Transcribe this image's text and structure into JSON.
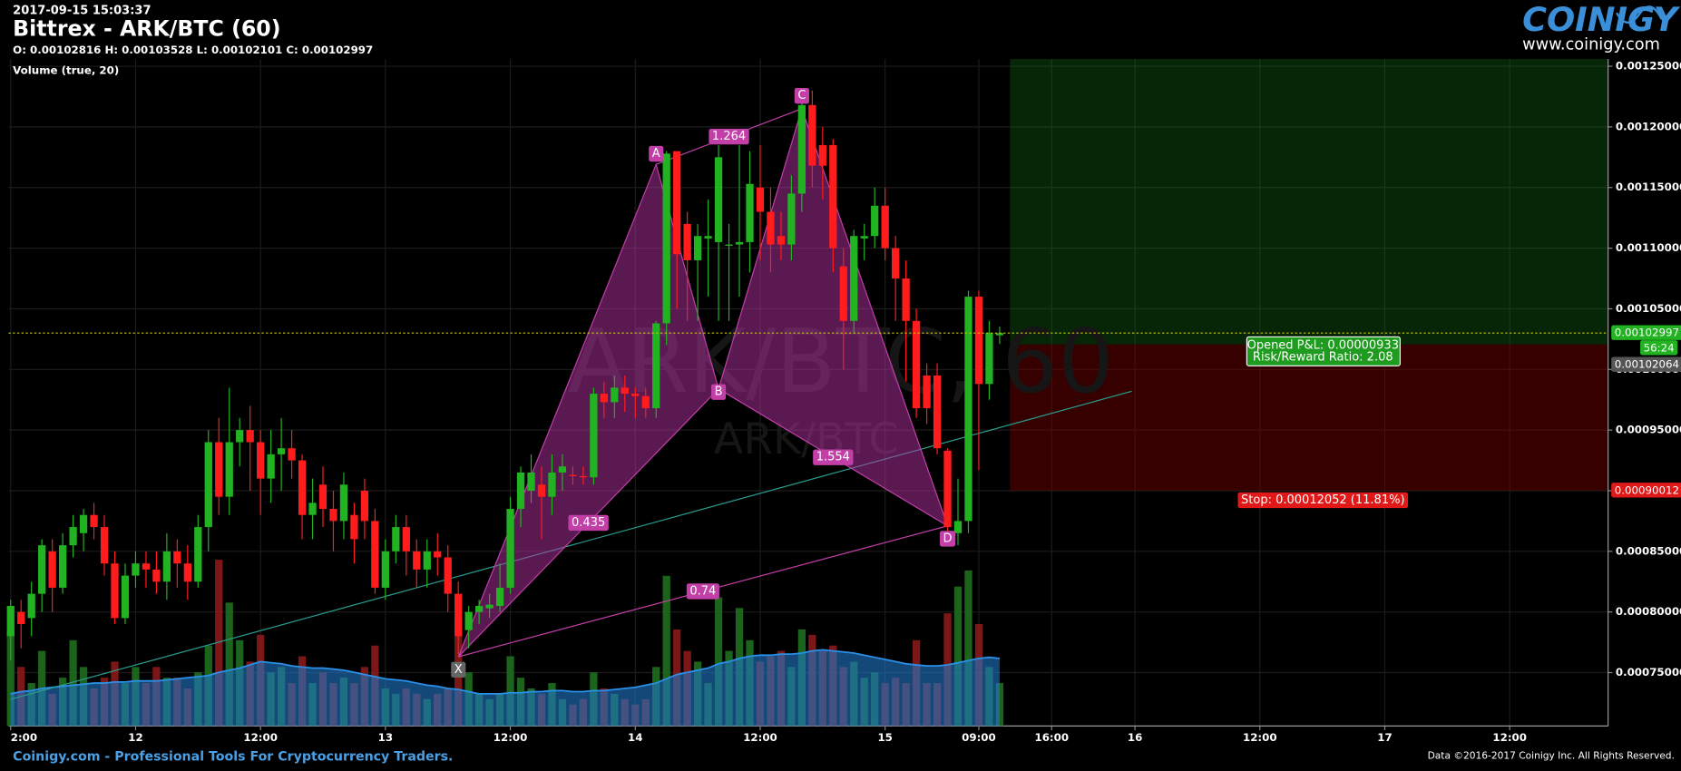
{
  "header": {
    "timestamp": "2017-09-15 15:03:37",
    "title": "Bittrex - ARK/BTC (60)",
    "ohlc": "O: 0.00102816 H: 0.00103528 L: 0.00102101 C: 0.00102997"
  },
  "logo": {
    "name": "COINIGY",
    "url": "www.coinigy.com"
  },
  "watermark": {
    "main": "ARK/BTC, 60",
    "sub": "ARK/BTC"
  },
  "footer": {
    "left": "Coinigy.com - Professional Tools For Cryptocurrency Traders.",
    "right": "Data ©2016-2017 Coinigy Inc. All Rights Reserved."
  },
  "chart_data": {
    "type": "candlestick",
    "up_color": "#22b322",
    "down_color": "#ff1c1c",
    "grid": true,
    "x": [
      0,
      1,
      2,
      3,
      4,
      5,
      6,
      7,
      8,
      9,
      10,
      11,
      12,
      13,
      14,
      15,
      16,
      17,
      18,
      19,
      20,
      21,
      22,
      23,
      24,
      25,
      26,
      27,
      28,
      29,
      30,
      31,
      32,
      33,
      34,
      35,
      36,
      37,
      38,
      39,
      40,
      41,
      42,
      43,
      44,
      45,
      46,
      47,
      48,
      49,
      50,
      51,
      52,
      53,
      54,
      55,
      56,
      57,
      58,
      59,
      60,
      61,
      62,
      63,
      64,
      65,
      66,
      67,
      68,
      69,
      70,
      71,
      72,
      73,
      74,
      75,
      76,
      77,
      78,
      79,
      80,
      81,
      82,
      83,
      84,
      85,
      86,
      87,
      88,
      89,
      90,
      91,
      92,
      93,
      94,
      95
    ],
    "open": [
      0.00078,
      0.0008,
      0.000795,
      0.000815,
      0.00085,
      0.00082,
      0.000855,
      0.000865,
      0.00088,
      0.00087,
      0.00084,
      0.000795,
      0.00083,
      0.00084,
      0.000835,
      0.000825,
      0.00085,
      0.00084,
      0.000825,
      0.00087,
      0.00094,
      0.000895,
      0.00094,
      0.00095,
      0.00094,
      0.00091,
      0.00093,
      0.000935,
      0.000925,
      0.00088,
      0.000905,
      0.000885,
      0.000875,
      0.00088,
      0.0009,
      0.000875,
      0.00082,
      0.00085,
      0.00087,
      0.00085,
      0.000835,
      0.00085,
      0.000845,
      0.000815,
      0.000785,
      0.0008,
      0.000803,
      0.000805,
      0.00082,
      0.000885,
      0.0009,
      0.000905,
      0.000895,
      0.000915,
      0.000913,
      0.000912,
      0.000911,
      0.00098,
      0.000973,
      0.000985,
      0.00098,
      0.000978,
      0.000968,
      0.001038,
      0.00118,
      0.00112,
      0.00109,
      0.001108,
      0.001105,
      0.001102,
      0.001103,
      0.001105,
      0.00115,
      0.00113,
      0.00111,
      0.001103,
      0.001145,
      0.001218,
      0.001185,
      0.001185,
      0.001085,
      0.00104,
      0.001108,
      0.00111,
      0.001135,
      0.0011,
      0.001075,
      0.00104,
      0.000995,
      0.000995,
      0.000933,
      0.000865,
      0.000875,
      0.00106,
      0.000988,
      0.00102816
    ],
    "high": [
      0.00081,
      0.00081,
      0.000825,
      0.00086,
      0.00086,
      0.000865,
      0.00088,
      0.000885,
      0.00089,
      0.00088,
      0.00085,
      0.00084,
      0.00085,
      0.00085,
      0.00085,
      0.000865,
      0.00086,
      0.000855,
      0.00088,
      0.00095,
      0.00096,
      0.000985,
      0.00096,
      0.00097,
      0.00095,
      0.00095,
      0.00096,
      0.00095,
      0.00093,
      0.00091,
      0.00092,
      0.0009,
      0.000915,
      0.00089,
      0.00091,
      0.000885,
      0.00086,
      0.00088,
      0.00088,
      0.00086,
      0.00086,
      0.000865,
      0.000855,
      0.000825,
      0.000805,
      0.00081,
      0.000815,
      0.00084,
      0.000895,
      0.00092,
      0.00093,
      0.00092,
      0.00093,
      0.00093,
      0.00092,
      0.00092,
      0.000985,
      0.00099,
      0.000995,
      0.000995,
      0.000985,
      0.000985,
      0.00104,
      0.00118,
      0.00118,
      0.00113,
      0.00112,
      0.00114,
      0.001185,
      0.00112,
      0.001185,
      0.00118,
      0.001185,
      0.00115,
      0.00113,
      0.00116,
      0.00122,
      0.00123,
      0.0012,
      0.00119,
      0.0011,
      0.001115,
      0.00112,
      0.00115,
      0.00115,
      0.00111,
      0.00109,
      0.00105,
      0.001005,
      0.001005,
      0.000935,
      0.00091,
      0.001065,
      0.001065,
      0.00104,
      0.00103528
    ],
    "low": [
      0.00076,
      0.00077,
      0.00078,
      0.0008,
      0.0008,
      0.000815,
      0.000845,
      0.00085,
      0.00086,
      0.00083,
      0.00079,
      0.00079,
      0.00082,
      0.00082,
      0.000815,
      0.00081,
      0.00082,
      0.00081,
      0.00082,
      0.00085,
      0.00088,
      0.00088,
      0.00092,
      0.0009,
      0.00088,
      0.00089,
      0.0009,
      0.00091,
      0.00086,
      0.00086,
      0.00087,
      0.00085,
      0.00086,
      0.00084,
      0.00086,
      0.000815,
      0.00081,
      0.00084,
      0.00083,
      0.00082,
      0.00082,
      0.00083,
      0.0008,
      0.000765,
      0.00077,
      0.00079,
      0.000795,
      0.0008,
      0.000815,
      0.00087,
      0.00089,
      0.00086,
      0.00088,
      0.0009,
      0.000905,
      0.000905,
      0.000905,
      0.00096,
      0.00096,
      0.000965,
      0.00096,
      0.00096,
      0.00096,
      0.00102,
      0.00105,
      0.00104,
      0.00104,
      0.00106,
      0.00104,
      0.00104,
      0.00106,
      0.00108,
      0.00109,
      0.00108,
      0.00109,
      0.00109,
      0.00113,
      0.00115,
      0.00114,
      0.00108,
      0.001,
      0.00103,
      0.00109,
      0.0011,
      0.00109,
      0.00104,
      0.00099,
      0.00096,
      0.000955,
      0.00093,
      0.00086,
      0.000855,
      0.000865,
      0.000917,
      0.000975,
      0.00102101
    ],
    "close": [
      0.000805,
      0.00079,
      0.000815,
      0.000855,
      0.00082,
      0.000855,
      0.00087,
      0.00088,
      0.00087,
      0.00084,
      0.000795,
      0.00083,
      0.00084,
      0.000835,
      0.000825,
      0.00085,
      0.00084,
      0.000825,
      0.00087,
      0.00094,
      0.000895,
      0.00094,
      0.00095,
      0.00094,
      0.00091,
      0.00093,
      0.000935,
      0.000925,
      0.00088,
      0.00089,
      0.000885,
      0.000875,
      0.000905,
      0.00086,
      0.000875,
      0.00082,
      0.00085,
      0.00087,
      0.00085,
      0.000835,
      0.00085,
      0.000845,
      0.000815,
      0.00078,
      0.0008,
      0.000805,
      0.000806,
      0.00082,
      0.000885,
      0.000915,
      0.000915,
      0.000895,
      0.000915,
      0.00092,
      0.000912,
      0.000911,
      0.00098,
      0.000973,
      0.000985,
      0.00098,
      0.000978,
      0.000968,
      0.001038,
      0.001178,
      0.001095,
      0.00109,
      0.00111,
      0.00111,
      0.001175,
      0.001103,
      0.001105,
      0.001153,
      0.00113,
      0.001103,
      0.001103,
      0.001145,
      0.001218,
      0.001168,
      0.001168,
      0.0011,
      0.00104,
      0.00111,
      0.00111,
      0.001135,
      0.0011,
      0.001075,
      0.00104,
      0.000968,
      0.000968,
      0.000935,
      0.00087,
      0.000875,
      0.00106,
      0.000988,
      0.00103,
      0.00102997
    ],
    "volume": {
      "label": "Volume (true, 20)",
      "up_color": "#1f6e1f",
      "down_color": "#8a1a1a",
      "ma_color": "#1f78c8",
      "values": [
        90,
        55,
        40,
        70,
        30,
        45,
        80,
        55,
        35,
        45,
        60,
        40,
        55,
        40,
        55,
        45,
        45,
        35,
        50,
        75,
        155,
        115,
        80,
        60,
        85,
        50,
        55,
        40,
        65,
        40,
        50,
        40,
        45,
        40,
        55,
        75,
        35,
        30,
        35,
        30,
        25,
        30,
        35,
        100,
        50,
        30,
        25,
        30,
        65,
        45,
        35,
        30,
        40,
        25,
        20,
        25,
        50,
        35,
        30,
        25,
        20,
        25,
        55,
        140,
        90,
        70,
        60,
        40,
        120,
        70,
        110,
        80,
        60,
        65,
        70,
        55,
        90,
        85,
        70,
        75,
        55,
        60,
        45,
        50,
        40,
        45,
        40,
        80,
        40,
        40,
        105,
        130,
        145,
        95,
        55,
        40
      ],
      "ma": [
        30,
        32,
        33,
        35,
        36,
        37,
        38,
        39,
        40,
        40,
        41,
        41,
        42,
        42,
        42,
        43,
        44,
        45,
        46,
        47,
        50,
        52,
        54,
        57,
        60,
        59,
        58,
        56,
        55,
        54,
        54,
        53,
        52,
        50,
        48,
        46,
        44,
        43,
        42,
        40,
        38,
        37,
        35,
        34,
        32,
        30,
        30,
        30,
        31,
        31,
        32,
        32,
        33,
        33,
        32,
        32,
        33,
        33,
        34,
        35,
        36,
        38,
        40,
        44,
        48,
        50,
        52,
        54,
        58,
        60,
        63,
        65,
        66,
        66,
        67,
        67,
        68,
        70,
        71,
        70,
        69,
        68,
        66,
        64,
        62,
        60,
        58,
        57,
        56,
        56,
        57,
        59,
        61,
        63,
        64,
        63
      ]
    },
    "xlim": [
      -0.2,
      153.45
    ],
    "ylim": [
      0.000706,
      0.001256
    ],
    "xticks": [
      {
        "value": 0,
        "label": "2:00"
      },
      {
        "value": 12,
        "label": "12"
      },
      {
        "value": 24,
        "label": "12:00"
      },
      {
        "value": 36,
        "label": "13"
      },
      {
        "value": 48,
        "label": "12:00"
      },
      {
        "value": 60,
        "label": "14"
      },
      {
        "value": 72,
        "label": "12:00"
      },
      {
        "value": 84,
        "label": "15"
      },
      {
        "value": 93,
        "label": "09:00"
      },
      {
        "value": 100,
        "label": "16:00"
      },
      {
        "value": 108,
        "label": "16"
      },
      {
        "value": 120,
        "label": "12:00"
      },
      {
        "value": 132,
        "label": "17"
      },
      {
        "value": 144,
        "label": "12:00"
      }
    ],
    "yticks": [
      {
        "value": 0.00075,
        "label": "0.00075000"
      },
      {
        "value": 0.0008,
        "label": "0.00080000"
      },
      {
        "value": 0.00085,
        "label": "0.00085000"
      },
      {
        "value": 0.0009,
        "label": "0.00090000"
      },
      {
        "value": 0.00095,
        "label": "0.00095000"
      },
      {
        "value": 0.001,
        "label": "0.00100000"
      },
      {
        "value": 0.00105,
        "label": "0.00105000"
      },
      {
        "value": 0.0011,
        "label": "0.00110000"
      },
      {
        "value": 0.00115,
        "label": "0.00115000"
      },
      {
        "value": 0.0012,
        "label": "0.00120000"
      },
      {
        "value": 0.00125,
        "label": "0.00125000"
      }
    ],
    "last_price": 0.00102997,
    "countdown": "56:24",
    "trendline": {
      "x": [
        0,
        107.7
      ],
      "y": [
        0.000728,
        0.000982
      ],
      "color": "#2a9d8f"
    },
    "pattern": {
      "color": "#c23fa8",
      "points": [
        {
          "label": "X",
          "x": 43,
          "y": 0.000763
        },
        {
          "label": "A",
          "x": 62,
          "y": 0.001169
        },
        {
          "label": "B",
          "x": 68,
          "y": 0.000984
        },
        {
          "label": "C",
          "x": 76,
          "y": 0.001215
        },
        {
          "label": "D",
          "x": 90,
          "y": 0.000871
        }
      ],
      "ratios": [
        0.435,
        1.264,
        1.554,
        0.74
      ]
    },
    "position": {
      "entry": 0.00102064,
      "stop": 0.00090012,
      "pnl_label": "Opened P&L: 0.00000933",
      "rr_label": "Risk/Reward Ratio: 2.08",
      "stop_label": "Stop: 0.00012052 (11.81%)"
    }
  }
}
